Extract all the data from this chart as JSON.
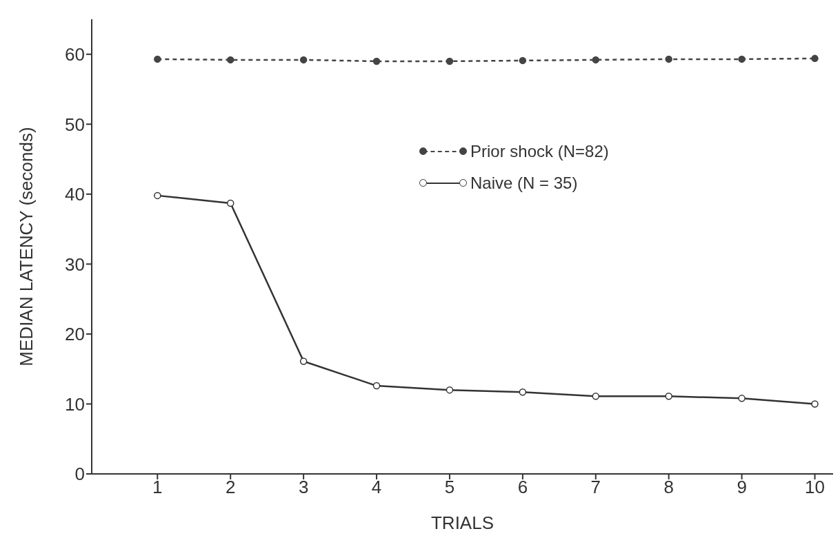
{
  "chart_data": {
    "type": "line",
    "xlabel": "TRIALS",
    "ylabel": "MEDIAN LATENCY (seconds)",
    "x": [
      1,
      2,
      3,
      4,
      5,
      6,
      7,
      8,
      9,
      10
    ],
    "series": [
      {
        "name": "Prior shock (N=82)",
        "color": "#444444",
        "line_style": "dashed",
        "marker": "circle",
        "values": [
          59.3,
          59.2,
          59.2,
          59.0,
          59.0,
          59.1,
          59.2,
          59.3,
          59.3,
          59.4
        ]
      },
      {
        "name": "Naive (N = 35)",
        "color": "#333333",
        "line_style": "solid",
        "marker": "circle",
        "values": [
          39.8,
          38.7,
          16.1,
          12.6,
          12.0,
          11.7,
          11.1,
          11.1,
          10.8,
          10.0
        ]
      }
    ],
    "xlim": [
      0.1,
      10.25
    ],
    "xticks": [
      1,
      2,
      3,
      4,
      5,
      6,
      7,
      8,
      9,
      10
    ],
    "ylim": [
      0,
      65
    ],
    "yticks": [
      0,
      10,
      20,
      30,
      40,
      50,
      60
    ],
    "grid": false,
    "legend": "top right"
  }
}
